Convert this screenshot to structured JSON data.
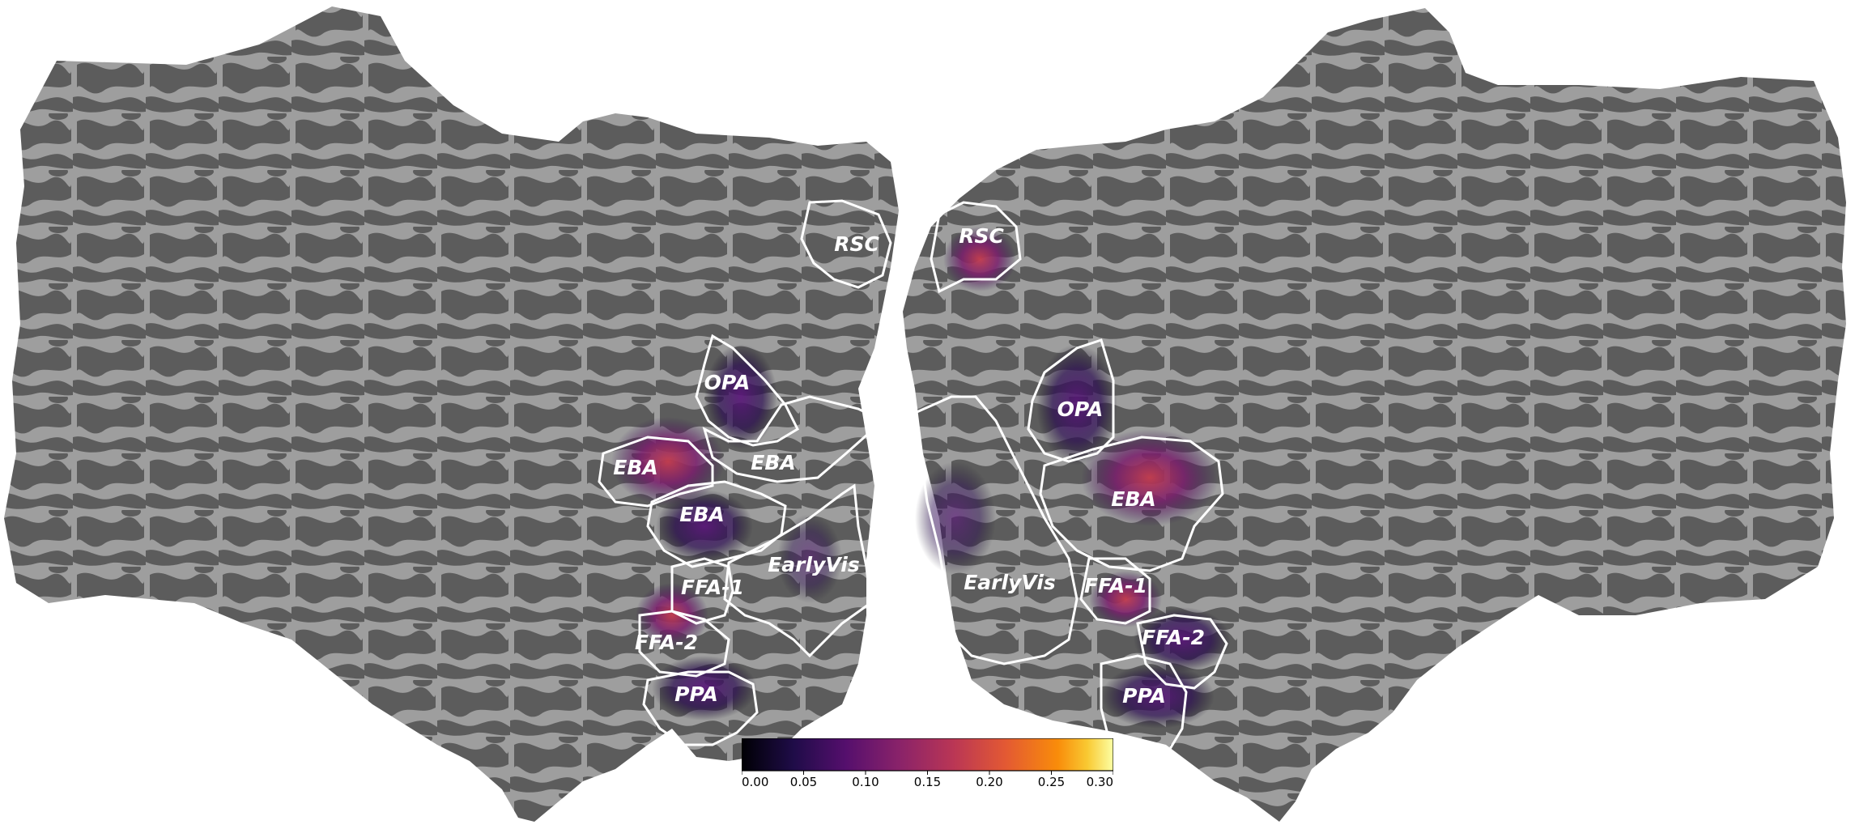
{
  "figure": {
    "roi_labels_left": [
      "RSC",
      "OPA",
      "EBA",
      "EBA",
      "EBA",
      "EarlyVis",
      "FFA-1",
      "FFA-2",
      "PPA"
    ],
    "roi_labels_right": [
      "RSC",
      "OPA",
      "EBA",
      "EarlyVis",
      "FFA-1",
      "FFA-2",
      "PPA"
    ],
    "colors": {
      "cortex_light": "#9e9e9e",
      "cortex_dark": "#5c5c5c",
      "roi_outline": "#ffffff",
      "activation_colormap": "inferno"
    }
  },
  "colorbar": {
    "colormap": "inferno",
    "range": [
      0.0,
      0.3
    ],
    "ticks": [
      "0.00",
      "0.05",
      "0.10",
      "0.15",
      "0.20",
      "0.25",
      "0.30"
    ]
  }
}
